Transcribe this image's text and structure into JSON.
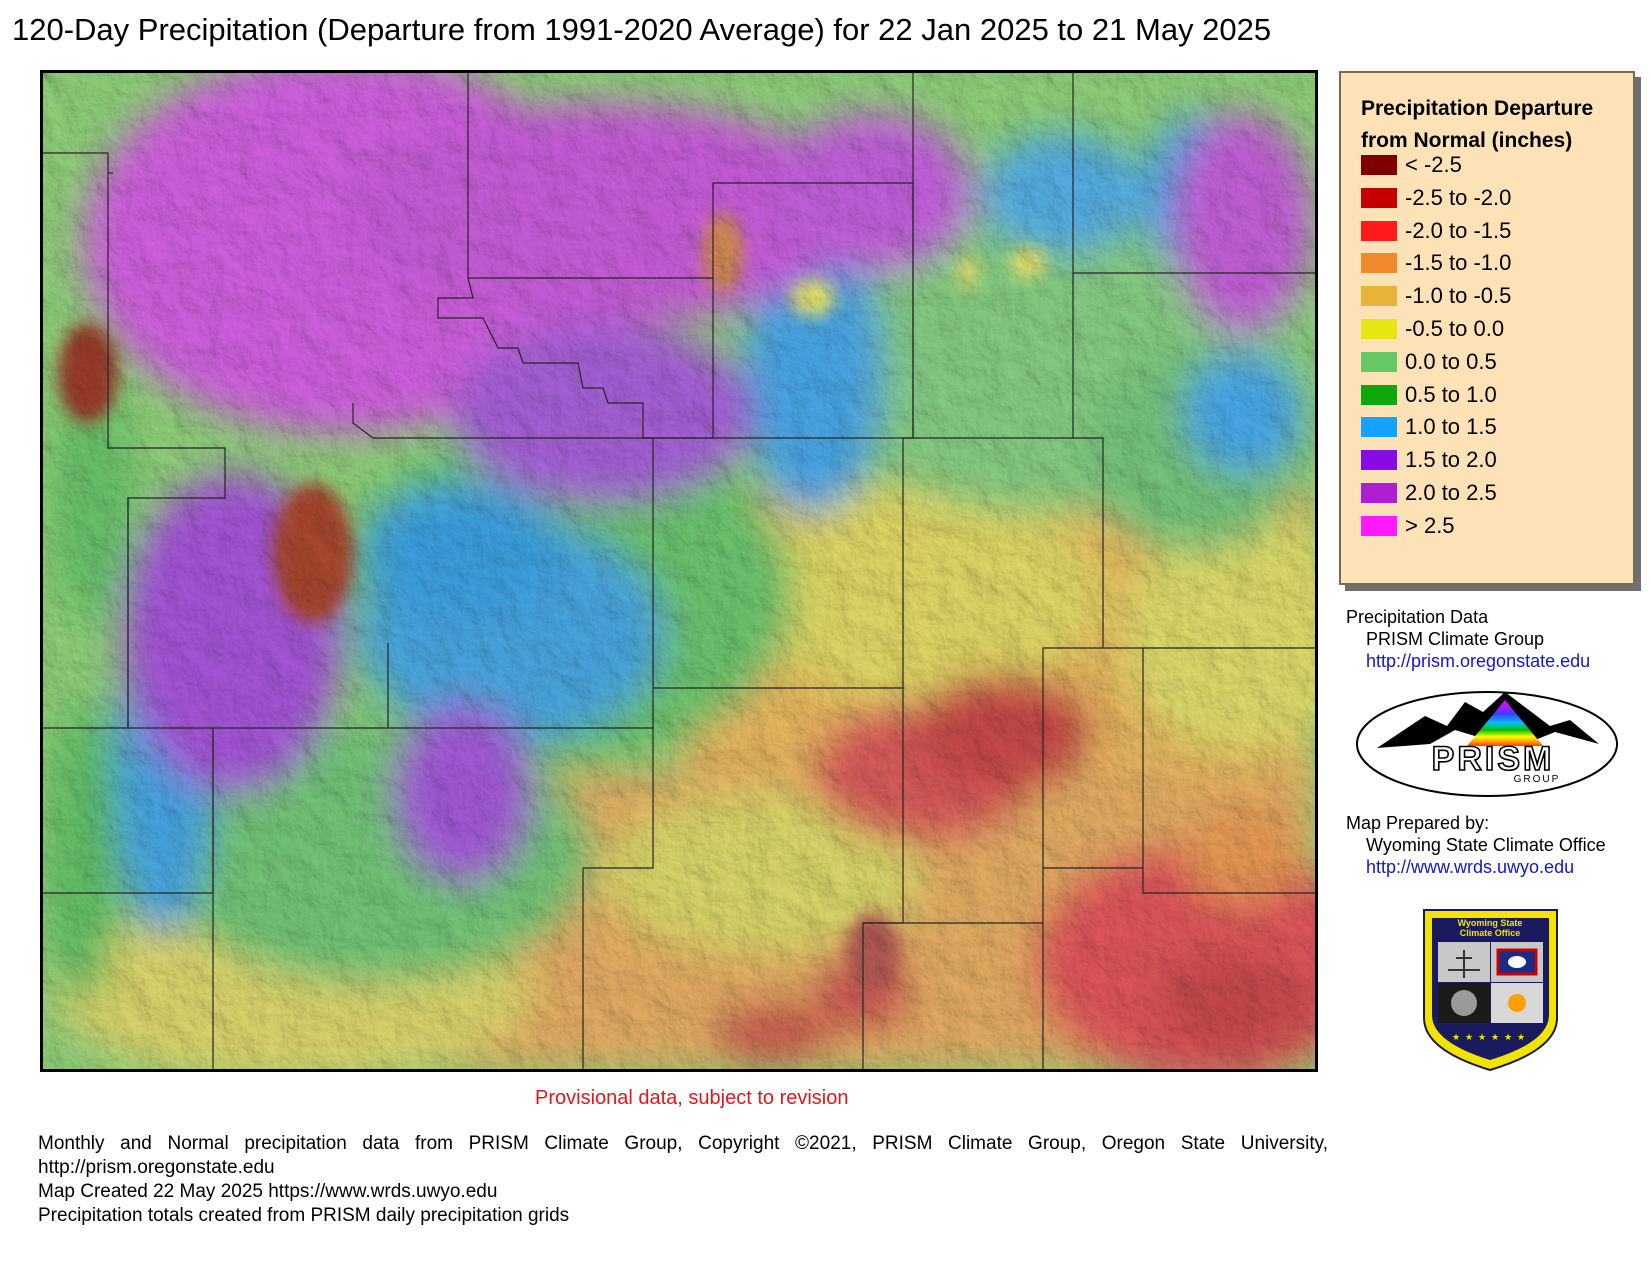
{
  "title": "120-Day Precipitation (Departure from 1991-2020 Average) for 22 Jan 2025 to 21 May 2025",
  "legend": {
    "title_line1": "Precipitation Departure",
    "title_line2": "from Normal (inches)",
    "items": [
      {
        "label": "< -2.5",
        "color": "#7f0000"
      },
      {
        "label": "-2.5 to -2.0",
        "color": "#c40000"
      },
      {
        "label": "-2.0 to -1.5",
        "color": "#ff1a1a"
      },
      {
        "label": "-1.5 to -1.0",
        "color": "#f08a2c"
      },
      {
        "label": "-1.0 to -0.5",
        "color": "#e8b43a"
      },
      {
        "label": "-0.5 to 0.0",
        "color": "#e6e615"
      },
      {
        "label": "0.0 to 0.5",
        "color": "#64c864"
      },
      {
        "label": "0.5 to 1.0",
        "color": "#0ca80c"
      },
      {
        "label": "1.0 to 1.5",
        "color": "#12a4ff"
      },
      {
        "label": "1.5 to 2.0",
        "color": "#8a0ae6"
      },
      {
        "label": "2.0 to 2.5",
        "color": "#b01ed2"
      },
      {
        "label": "> 2.5",
        "color": "#ff1aff"
      }
    ]
  },
  "credits": {
    "data_heading": "Precipitation Data",
    "data_source": "PRISM Climate Group",
    "data_url": "http://prism.oregonstate.edu",
    "prism_logo_text": "PRISM",
    "prism_logo_sub": "GROUP",
    "prepared_heading": "Map Prepared by:",
    "prepared_by": "Wyoming State Climate Office",
    "prepared_url": "http://www.wrds.uwyo.edu",
    "wsco_line1": "Wyoming State",
    "wsco_line2": "Climate Office"
  },
  "provisional": "Provisional data, subject to revision",
  "footer": {
    "line1": "Monthly and Normal precipitation data from PRISM Climate Group, Copyright ©2021, PRISM Climate Group, Oregon State University,",
    "line2": "http://prism.oregonstate.edu",
    "line3": "Map Created 22 May 2025 https://www.wrds.uwyo.edu",
    "line4": "Precipitation totals created from PRISM daily precipitation grids"
  }
}
